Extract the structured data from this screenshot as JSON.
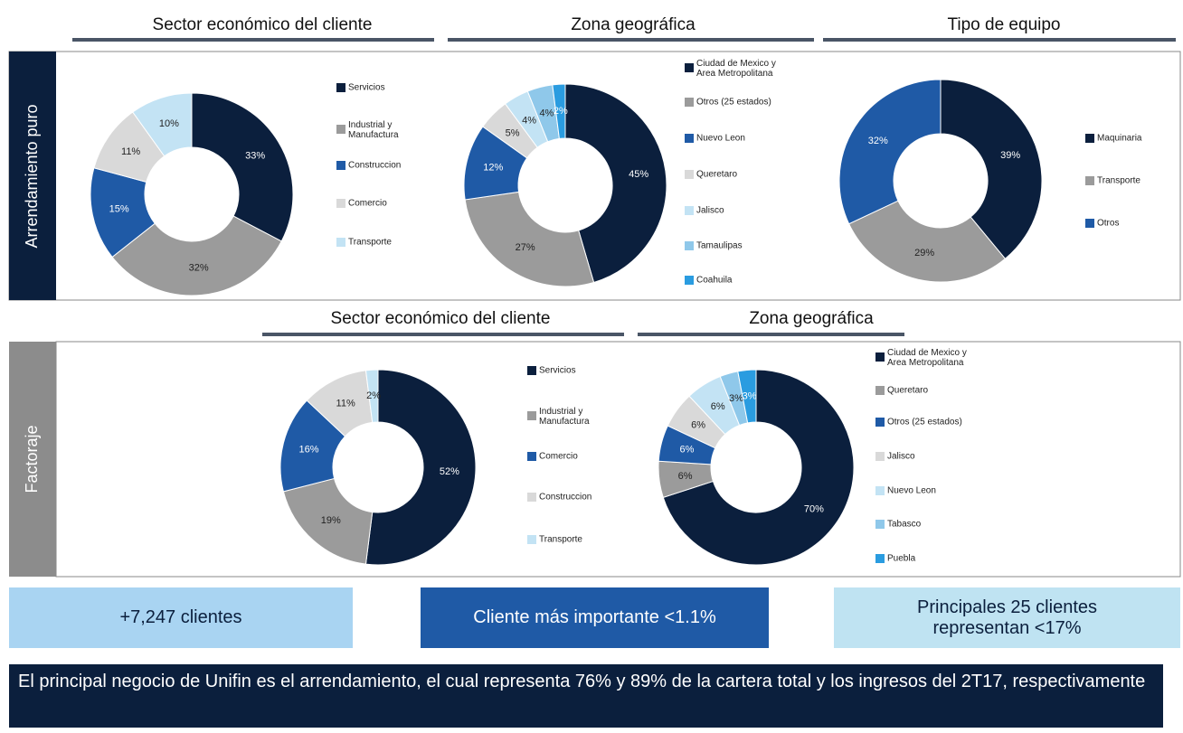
{
  "headers": {
    "top": [
      "Sector económico del cliente",
      "Zona geográfica",
      "Tipo de equipo"
    ],
    "bottom": [
      "Sector económico del cliente",
      "Zona geográfica"
    ]
  },
  "sections": [
    "Arrendamiento puro",
    "Factoraje"
  ],
  "chart_data": [
    {
      "type": "pie",
      "donut": true,
      "categories": [
        "Servicios",
        "Industrial y Manufactura",
        "Construccion",
        "Comercio",
        "Transporte"
      ],
      "values": [
        33,
        32,
        15,
        11,
        10
      ],
      "value_labels": [
        "33%",
        "32%",
        "15%",
        "11%",
        "10%"
      ],
      "colors": [
        "#0b1f3d",
        "#9b9b9b",
        "#1f5aa6",
        "#d9d9d9",
        "#c3e3f4"
      ]
    },
    {
      "type": "pie",
      "donut": true,
      "categories": [
        "Ciudad de Mexico y Area Metropolitana",
        "Otros (25 estados)",
        "Nuevo Leon",
        "Queretaro",
        "Jalisco",
        "Tamaulipas",
        "Coahuila"
      ],
      "values": [
        45,
        27,
        12,
        5,
        4,
        4,
        2
      ],
      "value_labels": [
        "45%",
        "27%",
        "12%",
        "5%",
        "4%",
        "4%",
        "2%"
      ],
      "colors": [
        "#0b1f3d",
        "#9b9b9b",
        "#1f5aa6",
        "#d9d9d9",
        "#c3e3f4",
        "#8fc8ea",
        "#2a9ce0"
      ]
    },
    {
      "type": "pie",
      "donut": true,
      "categories": [
        "Maquinaria",
        "Transporte",
        "Otros"
      ],
      "values": [
        39,
        29,
        32
      ],
      "value_labels": [
        "39%",
        "29%",
        "32%"
      ],
      "colors": [
        "#0b1f3d",
        "#9b9b9b",
        "#1f5aa6"
      ]
    },
    {
      "type": "pie",
      "donut": true,
      "categories": [
        "Servicios",
        "Industrial y Manufactura",
        "Comercio",
        "Construccion",
        "Transporte"
      ],
      "values": [
        52,
        19,
        16,
        11,
        2
      ],
      "value_labels": [
        "52%",
        "19%",
        "16%",
        "11%",
        "2%"
      ],
      "colors": [
        "#0b1f3d",
        "#9b9b9b",
        "#1f5aa6",
        "#d9d9d9",
        "#c3e3f4"
      ]
    },
    {
      "type": "pie",
      "donut": true,
      "categories": [
        "Ciudad de Mexico y Area Metropolitana",
        "Queretaro",
        "Otros (25 estados)",
        "Jalisco",
        "Nuevo Leon",
        "Tabasco",
        "Puebla"
      ],
      "values": [
        70,
        6,
        6,
        6,
        6,
        3,
        3
      ],
      "value_labels": [
        "70%",
        "6%",
        "6%",
        "6%",
        "6%",
        "3%",
        "3%"
      ],
      "colors": [
        "#0b1f3d",
        "#9b9b9b",
        "#1f5aa6",
        "#d9d9d9",
        "#c3e3f4",
        "#8fc8ea",
        "#2a9ce0"
      ]
    }
  ],
  "highlights": [
    "+7,247 clientes",
    "Cliente más importante <1.1%",
    "Principales 25 clientes representan <17%"
  ],
  "footer": "El principal negocio de Unifin es el arrendamiento, el cual representa 76% y 89% de la cartera total y los ingresos del 2T17, respectivamente"
}
